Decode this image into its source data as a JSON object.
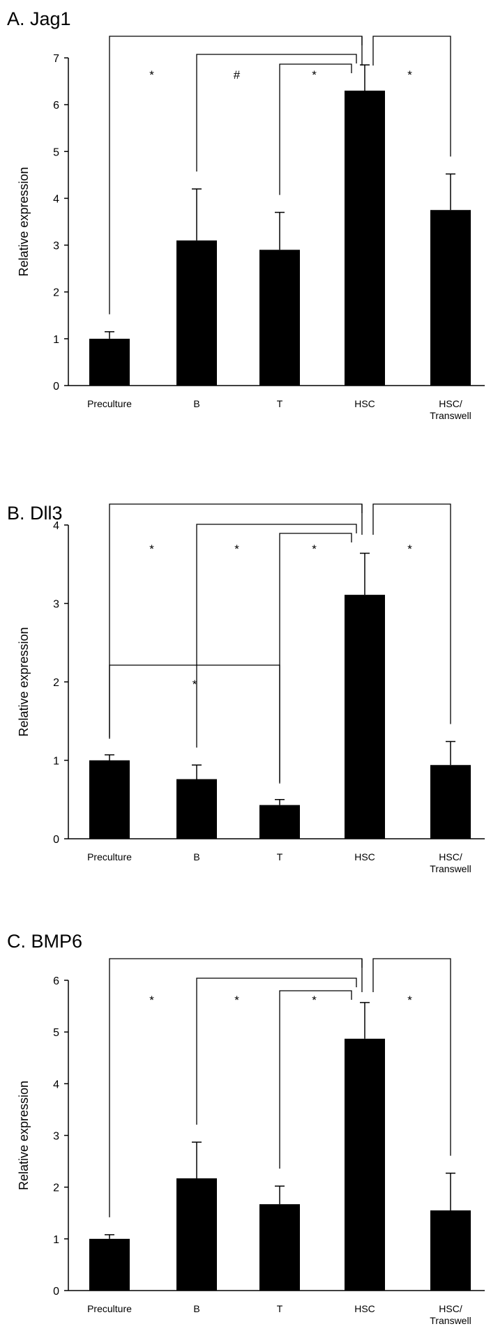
{
  "chart_data": [
    {
      "type": "bar",
      "panel": "A.",
      "title": "Jag1",
      "ylabel": "Relative expression",
      "ylim": [
        0,
        7
      ],
      "yticks": [
        "0",
        "1",
        "2",
        "3",
        "4",
        "5",
        "6",
        "7"
      ],
      "categories": [
        "Preculture",
        "B",
        "T",
        "HSC",
        "HSC/\nTranswell"
      ],
      "values": [
        1.0,
        3.1,
        2.9,
        6.3,
        3.75
      ],
      "errors": [
        0.15,
        1.1,
        0.8,
        0.55,
        0.77
      ],
      "significance": [
        {
          "from": "Preculture",
          "to": "HSC",
          "label": "*"
        },
        {
          "from": "B",
          "to": "HSC",
          "label": "#"
        },
        {
          "from": "T",
          "to": "HSC",
          "label": "*"
        },
        {
          "from": "HSC/\nTranswell",
          "to": "HSC",
          "label": "*"
        }
      ]
    },
    {
      "type": "bar",
      "panel": "B.",
      "title": "Dll3",
      "ylabel": "Relative expression",
      "ylim": [
        0,
        4
      ],
      "yticks": [
        "0",
        "1",
        "2",
        "3",
        "4"
      ],
      "categories": [
        "Preculture",
        "B",
        "T",
        "HSC",
        "HSC/\nTranswell"
      ],
      "values": [
        1.0,
        0.76,
        0.43,
        3.11,
        0.94
      ],
      "errors": [
        0.07,
        0.18,
        0.07,
        0.53,
        0.3
      ],
      "significance": [
        {
          "from": "Preculture",
          "to": "HSC",
          "label": "*"
        },
        {
          "from": "B",
          "to": "HSC",
          "label": "*"
        },
        {
          "from": "T",
          "to": "HSC",
          "label": "*"
        },
        {
          "from": "HSC/\nTranswell",
          "to": "HSC",
          "label": "*"
        },
        {
          "from": "Preculture",
          "to": "T",
          "label": "*"
        }
      ]
    },
    {
      "type": "bar",
      "panel": "C.",
      "title": "BMP6",
      "ylabel": "Relative expression",
      "ylim": [
        0,
        6
      ],
      "yticks": [
        "0",
        "1",
        "2",
        "3",
        "4",
        "5",
        "6"
      ],
      "categories": [
        "Preculture",
        "B",
        "T",
        "HSC",
        "HSC/\nTranswell"
      ],
      "values": [
        1.0,
        2.17,
        1.67,
        4.87,
        1.55
      ],
      "errors": [
        0.08,
        0.7,
        0.35,
        0.7,
        0.72
      ],
      "significance": [
        {
          "from": "Preculture",
          "to": "HSC",
          "label": "*"
        },
        {
          "from": "B",
          "to": "HSC",
          "label": "*"
        },
        {
          "from": "T",
          "to": "HSC",
          "label": "*"
        },
        {
          "from": "HSC/\nTranswell",
          "to": "HSC",
          "label": "*"
        }
      ]
    }
  ]
}
